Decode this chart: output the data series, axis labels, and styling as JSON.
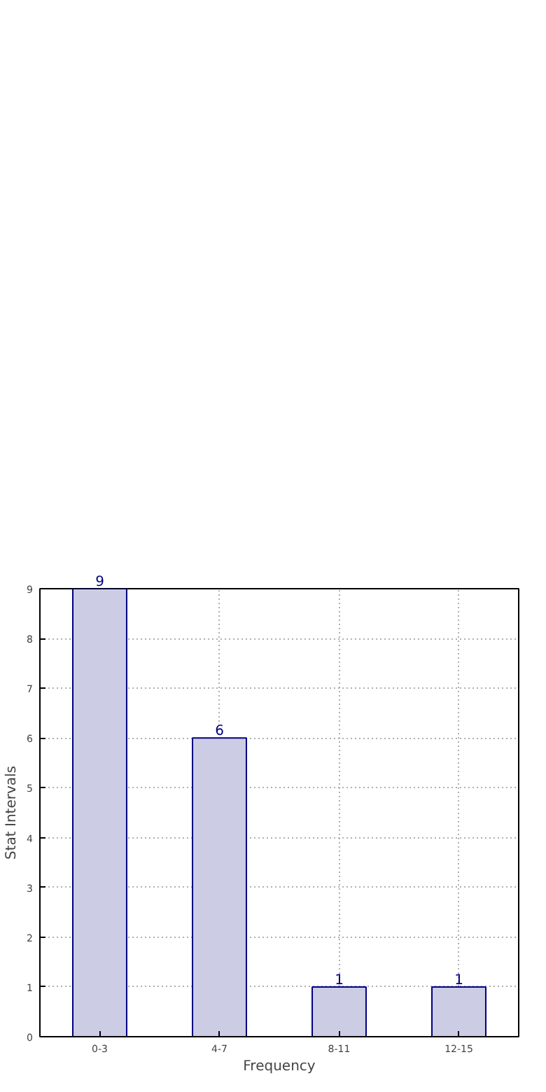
{
  "chart_data": {
    "type": "bar",
    "xlabel": "Frequency",
    "ylabel": "Stat Intervals",
    "categories": [
      "0-3",
      "4-7",
      "8-11",
      "12-15"
    ],
    "values": [
      9,
      6,
      1,
      1
    ],
    "color": "#cccce5",
    "ylim": [
      0,
      9
    ],
    "yticks": [
      0,
      1,
      2,
      3,
      4,
      5,
      6,
      7,
      8,
      9
    ],
    "grid": true,
    "data_labels": true
  }
}
